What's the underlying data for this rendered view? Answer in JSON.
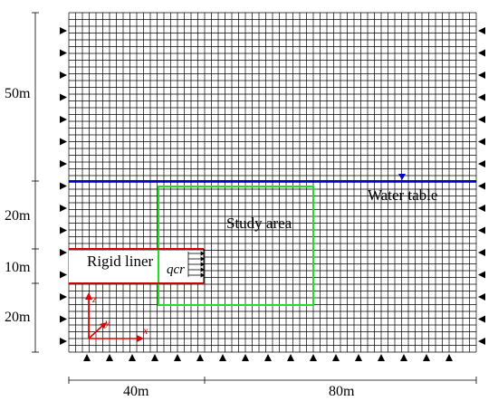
{
  "dimensions": {
    "left": [
      "50m",
      "20m",
      "10m",
      "20m"
    ],
    "bottom": [
      "40m",
      "80m"
    ]
  },
  "labels": {
    "water_table": "Water table",
    "study_area": "Study area",
    "rigid_liner": "Rigid liner",
    "flow": "qcr"
  },
  "axes": {
    "z": "z",
    "y": "y",
    "x": "x"
  },
  "colors": {
    "water_table_line": "#0000cc",
    "study_area_box": "#22dd22",
    "liner_line": "#cc0000",
    "axes": "#dd0000",
    "grid": "#000000"
  }
}
